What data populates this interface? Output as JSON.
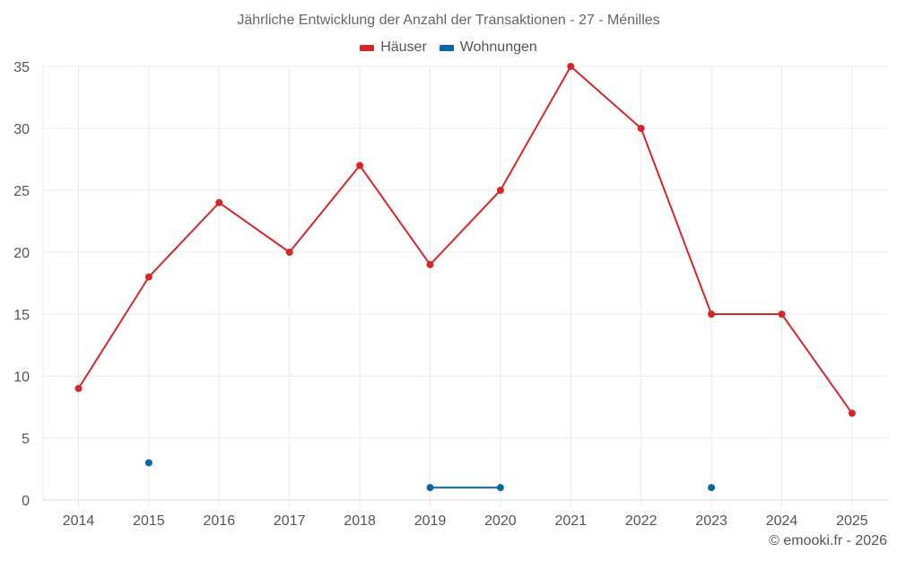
{
  "chart_data": {
    "type": "line",
    "title": "Jährliche Entwicklung der Anzahl der Transaktionen - 27 - Ménilles",
    "xlabel": "",
    "ylabel": "",
    "x": [
      2014,
      2015,
      2016,
      2017,
      2018,
      2019,
      2020,
      2021,
      2022,
      2023,
      2024,
      2025
    ],
    "series": [
      {
        "name": "Häuser",
        "color": "#d62728",
        "values": [
          9,
          18,
          24,
          20,
          27,
          19,
          25,
          35,
          30,
          15,
          15,
          7
        ]
      },
      {
        "name": "Wohnungen",
        "color": "#0868a0",
        "values": [
          null,
          3,
          null,
          null,
          null,
          1,
          1,
          null,
          null,
          1,
          null,
          null
        ]
      }
    ],
    "ylim": [
      0,
      35
    ],
    "yticks": [
      0,
      5,
      10,
      15,
      20,
      25,
      30,
      35
    ],
    "grid": true,
    "legend_position": "top"
  },
  "header": {
    "title": "Jährliche Entwicklung der Anzahl der Transaktionen - 27 - Ménilles"
  },
  "legend": {
    "items": [
      {
        "label": "Häuser",
        "color": "#d62728"
      },
      {
        "label": "Wohnungen",
        "color": "#0868a0"
      }
    ]
  },
  "footer": {
    "credit": "© emooki.fr - 2026"
  }
}
